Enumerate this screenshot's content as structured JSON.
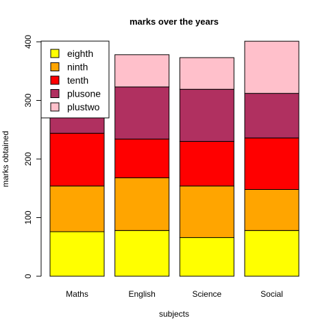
{
  "chart_data": {
    "type": "bar",
    "stacked": true,
    "title": "marks over the years",
    "xlabel": "subjects",
    "ylabel": "marks obtained",
    "ylim": [
      0,
      400
    ],
    "yticks": [
      0,
      100,
      200,
      300,
      400
    ],
    "categories": [
      "Maths",
      "English",
      "Science",
      "Social"
    ],
    "series": [
      {
        "name": "eighth",
        "color": "#ffff00",
        "values": [
          76,
          78,
          66,
          78
        ]
      },
      {
        "name": "ninth",
        "color": "#ffa500",
        "values": [
          78,
          90,
          88,
          70
        ]
      },
      {
        "name": "tenth",
        "color": "#ff0000",
        "values": [
          90,
          66,
          76,
          88
        ]
      },
      {
        "name": "plusone",
        "color": "#b03060",
        "values": [
          56,
          89,
          89,
          76
        ]
      },
      {
        "name": "plustwo",
        "color": "#ffc0cb",
        "values": [
          0,
          55,
          54,
          89
        ]
      }
    ],
    "legend_position": "top-left",
    "grid": false
  }
}
